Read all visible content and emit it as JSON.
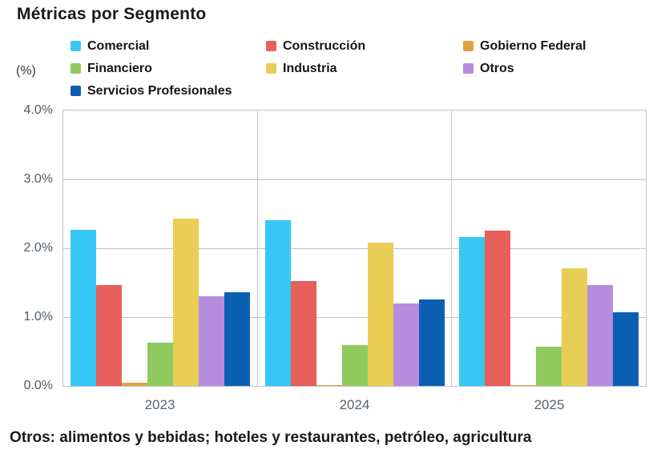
{
  "title": "Métricas por Segmento",
  "y_axis": {
    "unit_label": "(%)",
    "ticks": [
      "4.0%",
      "3.0%",
      "2.0%",
      "1.0%",
      "0.0%"
    ],
    "min": 0.0,
    "max": 4.0
  },
  "footnote": "Otros: alimentos y bebidas; hoteles y restaurantes, petróleo, agricultura",
  "colors": {
    "gridline": "#c4c4c4",
    "axis_tick_text": "#4f5b66",
    "category_text": "#5a646e",
    "title_text": "#1a1a1a"
  },
  "chart_data": {
    "type": "bar",
    "title": "Métricas por Segmento",
    "categories": [
      "2023",
      "2024",
      "2025"
    ],
    "xlabel": "",
    "ylabel": "(%)",
    "ylim": [
      0,
      4.0
    ],
    "grid": "horizontal gridlines every 1.0%, vertical separators between year panels",
    "legend_position": "top",
    "series": [
      {
        "name": "Comercial",
        "color": "#38c8f5",
        "values": [
          2.27,
          2.41,
          2.16
        ]
      },
      {
        "name": "Construcción",
        "color": "#e7605b",
        "values": [
          1.46,
          1.52,
          2.25
        ]
      },
      {
        "name": "Gobierno Federal",
        "color": "#e2a33f",
        "values": [
          0.05,
          0.01,
          0.01
        ]
      },
      {
        "name": "Financiero",
        "color": "#90ca5e",
        "values": [
          0.63,
          0.59,
          0.57
        ]
      },
      {
        "name": "Industria",
        "color": "#e8ce55",
        "values": [
          2.43,
          2.08,
          1.71
        ]
      },
      {
        "name": "Otros",
        "color": "#b78cde",
        "values": [
          1.3,
          1.2,
          1.46
        ]
      },
      {
        "name": "Servicios Profesionales",
        "color": "#0c60b4",
        "values": [
          1.36,
          1.26,
          1.07
        ]
      }
    ]
  }
}
